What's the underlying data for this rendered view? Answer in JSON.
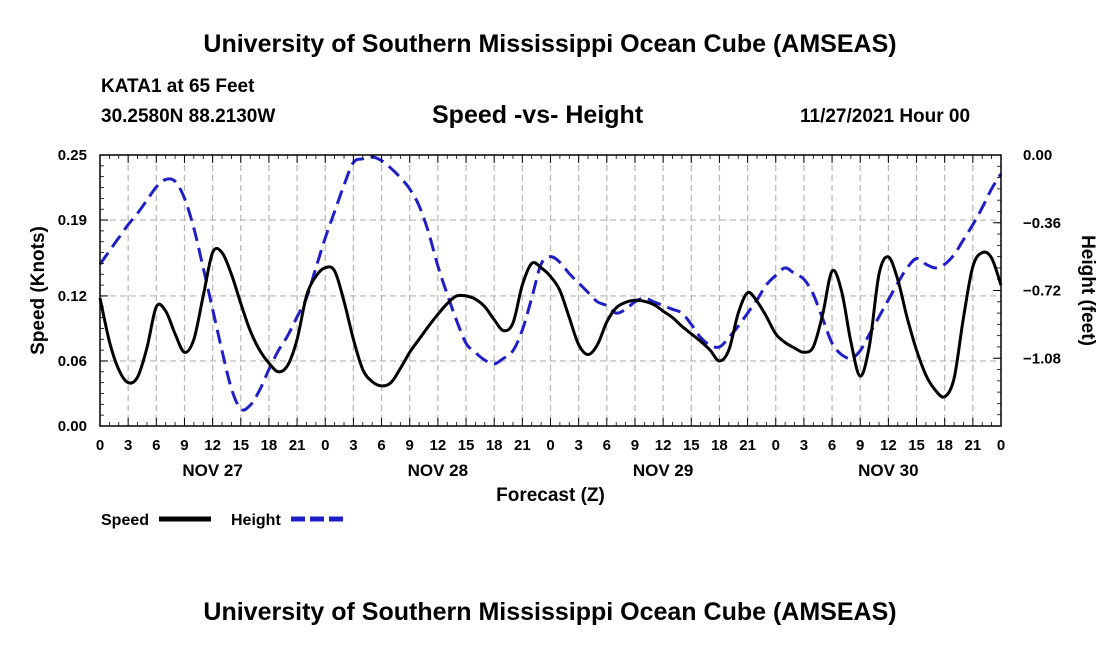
{
  "header": {
    "title": "University of Southern Mississippi Ocean Cube (AMSEAS)",
    "station": "KATA1 at 65 Feet",
    "coords": "30.2580N  88.2130W",
    "subtitle": "Speed -vs- Height",
    "datetime": "11/27/2021 Hour 00"
  },
  "footer": {
    "title": "University of Southern Mississippi Ocean Cube (AMSEAS)"
  },
  "colors": {
    "speed": "#000000",
    "height": "#1f1fc8",
    "grid": "#b4b4b4"
  },
  "chart_data": {
    "type": "line",
    "xlabel": "Forecast (Z)",
    "ylabel_left": "Speed (Knots)",
    "ylabel_right": "Height (feet)",
    "x_range": [
      0,
      96
    ],
    "x_tick_labels": [
      "0",
      "3",
      "6",
      "9",
      "12",
      "15",
      "18",
      "21",
      "0",
      "3",
      "6",
      "9",
      "12",
      "15",
      "18",
      "21",
      "0",
      "3",
      "6",
      "9",
      "12",
      "15",
      "18",
      "21",
      "0",
      "3",
      "6",
      "9",
      "12",
      "15",
      "18",
      "21",
      "0"
    ],
    "day_labels": [
      {
        "label": "NOV 27",
        "hour": 12
      },
      {
        "label": "NOV 28",
        "hour": 36
      },
      {
        "label": "NOV 29",
        "hour": 60
      },
      {
        "label": "NOV 30",
        "hour": 84
      }
    ],
    "left_axis": {
      "range": [
        0.0,
        0.25
      ],
      "ticks": [
        "0.00",
        "0.06",
        "0.12",
        "0.19",
        "0.25"
      ]
    },
    "right_axis": {
      "range": [
        -1.44,
        0.0
      ],
      "ticks": [
        "0.00",
        "−0.36",
        "−0.72",
        "−1.08"
      ]
    },
    "legend": [
      {
        "name": "Speed",
        "style": "solid"
      },
      {
        "name": "Height",
        "style": "dashed"
      }
    ],
    "series": [
      {
        "name": "Speed",
        "axis": "left",
        "style": "solid",
        "points": [
          [
            0,
            0.118
          ],
          [
            1,
            0.078
          ],
          [
            2,
            0.052
          ],
          [
            3,
            0.04
          ],
          [
            4,
            0.045
          ],
          [
            5,
            0.072
          ],
          [
            6,
            0.11
          ],
          [
            7,
            0.106
          ],
          [
            8,
            0.085
          ],
          [
            9,
            0.068
          ],
          [
            10,
            0.08
          ],
          [
            11,
            0.12
          ],
          [
            12,
            0.16
          ],
          [
            13,
            0.16
          ],
          [
            14,
            0.14
          ],
          [
            15,
            0.113
          ],
          [
            16,
            0.088
          ],
          [
            17,
            0.07
          ],
          [
            18,
            0.058
          ],
          [
            19,
            0.05
          ],
          [
            20,
            0.056
          ],
          [
            21,
            0.08
          ],
          [
            22,
            0.12
          ],
          [
            23,
            0.138
          ],
          [
            24,
            0.146
          ],
          [
            25,
            0.143
          ],
          [
            26,
            0.115
          ],
          [
            27,
            0.08
          ],
          [
            28,
            0.052
          ],
          [
            29,
            0.041
          ],
          [
            30,
            0.037
          ],
          [
            31,
            0.04
          ],
          [
            32,
            0.053
          ],
          [
            33,
            0.068
          ],
          [
            34,
            0.08
          ],
          [
            35,
            0.092
          ],
          [
            36,
            0.103
          ],
          [
            37,
            0.113
          ],
          [
            38,
            0.12
          ],
          [
            39,
            0.12
          ],
          [
            40,
            0.117
          ],
          [
            41,
            0.11
          ],
          [
            42,
            0.098
          ],
          [
            43,
            0.088
          ],
          [
            44,
            0.095
          ],
          [
            45,
            0.13
          ],
          [
            46,
            0.15
          ],
          [
            47,
            0.146
          ],
          [
            48,
            0.138
          ],
          [
            49,
            0.125
          ],
          [
            50,
            0.1
          ],
          [
            51,
            0.075
          ],
          [
            52,
            0.066
          ],
          [
            53,
            0.075
          ],
          [
            54,
            0.096
          ],
          [
            55,
            0.109
          ],
          [
            56,
            0.114
          ],
          [
            57,
            0.116
          ],
          [
            58,
            0.115
          ],
          [
            59,
            0.112
          ],
          [
            60,
            0.106
          ],
          [
            61,
            0.1
          ],
          [
            62,
            0.092
          ],
          [
            63,
            0.085
          ],
          [
            64,
            0.078
          ],
          [
            65,
            0.07
          ],
          [
            66,
            0.06
          ],
          [
            67,
            0.07
          ],
          [
            68,
            0.104
          ],
          [
            69,
            0.123
          ],
          [
            70,
            0.115
          ],
          [
            71,
            0.101
          ],
          [
            72,
            0.085
          ],
          [
            73,
            0.077
          ],
          [
            74,
            0.072
          ],
          [
            75,
            0.068
          ],
          [
            76,
            0.073
          ],
          [
            77,
            0.103
          ],
          [
            78,
            0.143
          ],
          [
            79,
            0.125
          ],
          [
            80,
            0.078
          ],
          [
            81,
            0.046
          ],
          [
            82,
            0.075
          ],
          [
            83,
            0.14
          ],
          [
            84,
            0.156
          ],
          [
            85,
            0.135
          ],
          [
            86,
            0.1
          ],
          [
            87,
            0.07
          ],
          [
            88,
            0.047
          ],
          [
            89,
            0.033
          ],
          [
            90,
            0.027
          ],
          [
            91,
            0.044
          ],
          [
            92,
            0.1
          ],
          [
            93,
            0.147
          ],
          [
            94,
            0.16
          ],
          [
            95,
            0.155
          ],
          [
            96,
            0.13
          ]
        ]
      },
      {
        "name": "Height",
        "axis": "right",
        "style": "dashed",
        "points": [
          [
            0,
            -0.58
          ],
          [
            1,
            -0.51
          ],
          [
            2,
            -0.44
          ],
          [
            3,
            -0.37
          ],
          [
            4,
            -0.31
          ],
          [
            5,
            -0.24
          ],
          [
            6,
            -0.17
          ],
          [
            7,
            -0.13
          ],
          [
            8,
            -0.14
          ],
          [
            9,
            -0.23
          ],
          [
            10,
            -0.39
          ],
          [
            11,
            -0.6
          ],
          [
            12,
            -0.82
          ],
          [
            13,
            -1.04
          ],
          [
            14,
            -1.24
          ],
          [
            15,
            -1.35
          ],
          [
            16,
            -1.33
          ],
          [
            17,
            -1.25
          ],
          [
            18,
            -1.14
          ],
          [
            19,
            -1.04
          ],
          [
            20,
            -0.96
          ],
          [
            21,
            -0.86
          ],
          [
            22,
            -0.76
          ],
          [
            23,
            -0.6
          ],
          [
            24,
            -0.44
          ],
          [
            25,
            -0.3
          ],
          [
            26,
            -0.16
          ],
          [
            27,
            -0.04
          ],
          [
            28,
            -0.02
          ],
          [
            29,
            -0.01
          ],
          [
            30,
            -0.03
          ],
          [
            31,
            -0.07
          ],
          [
            32,
            -0.12
          ],
          [
            33,
            -0.18
          ],
          [
            34,
            -0.27
          ],
          [
            35,
            -0.41
          ],
          [
            36,
            -0.59
          ],
          [
            37,
            -0.74
          ],
          [
            38,
            -0.88
          ],
          [
            39,
            -1.0
          ],
          [
            40,
            -1.05
          ],
          [
            41,
            -1.09
          ],
          [
            42,
            -1.11
          ],
          [
            43,
            -1.08
          ],
          [
            44,
            -1.04
          ],
          [
            45,
            -0.93
          ],
          [
            46,
            -0.76
          ],
          [
            47,
            -0.58
          ],
          [
            48,
            -0.54
          ],
          [
            49,
            -0.57
          ],
          [
            50,
            -0.63
          ],
          [
            51,
            -0.68
          ],
          [
            52,
            -0.73
          ],
          [
            53,
            -0.78
          ],
          [
            54,
            -0.8
          ],
          [
            55,
            -0.84
          ],
          [
            56,
            -0.82
          ],
          [
            57,
            -0.78
          ],
          [
            58,
            -0.76
          ],
          [
            59,
            -0.78
          ],
          [
            60,
            -0.8
          ],
          [
            61,
            -0.82
          ],
          [
            62,
            -0.84
          ],
          [
            63,
            -0.9
          ],
          [
            64,
            -0.97
          ],
          [
            65,
            -1.01
          ],
          [
            66,
            -1.02
          ],
          [
            67,
            -0.97
          ],
          [
            68,
            -0.91
          ],
          [
            69,
            -0.84
          ],
          [
            70,
            -0.77
          ],
          [
            71,
            -0.69
          ],
          [
            72,
            -0.64
          ],
          [
            73,
            -0.6
          ],
          [
            74,
            -0.63
          ],
          [
            75,
            -0.66
          ],
          [
            76,
            -0.74
          ],
          [
            77,
            -0.87
          ],
          [
            78,
            -1.0
          ],
          [
            79,
            -1.06
          ],
          [
            80,
            -1.08
          ],
          [
            81,
            -1.04
          ],
          [
            82,
            -0.95
          ],
          [
            83,
            -0.86
          ],
          [
            84,
            -0.77
          ],
          [
            85,
            -0.68
          ],
          [
            86,
            -0.6
          ],
          [
            87,
            -0.55
          ],
          [
            88,
            -0.58
          ],
          [
            89,
            -0.6
          ],
          [
            90,
            -0.58
          ],
          [
            91,
            -0.53
          ],
          [
            92,
            -0.45
          ],
          [
            93,
            -0.37
          ],
          [
            94,
            -0.28
          ],
          [
            95,
            -0.18
          ],
          [
            96,
            -0.1
          ]
        ]
      }
    ]
  }
}
